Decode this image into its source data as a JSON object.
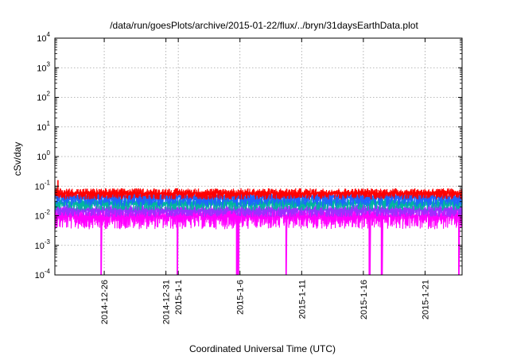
{
  "chart_data": {
    "type": "line",
    "title": "/data/run/goesPlots/archive/2015-01-22/flux/../bryn/31daysEarthData.plot",
    "xlabel": "Coordinated Universal Time (UTC)",
    "ylabel": "cSv/day",
    "yscale": "log",
    "ylim": [
      0.0001,
      10000
    ],
    "xlim": [
      "2014-12-22T00:00",
      "2015-01-24T00:00"
    ],
    "grid": true,
    "legend": "none",
    "x_ticks": [
      {
        "date": "2014-12-26",
        "label": "2014-12-26"
      },
      {
        "date": "2014-12-31",
        "label": "2014-12-31"
      },
      {
        "date": "2015-01-01",
        "label": "2015-1-1"
      },
      {
        "date": "2015-01-06",
        "label": "2015-1-6"
      },
      {
        "date": "2015-01-11",
        "label": "2015-1-11"
      },
      {
        "date": "2015-01-16",
        "label": "2015-1-16"
      },
      {
        "date": "2015-01-21",
        "label": "2015-1-21"
      }
    ],
    "y_ticks": [
      {
        "value": 0.0001,
        "base": "10",
        "exp": "-4"
      },
      {
        "value": 0.001,
        "base": "10",
        "exp": "-3"
      },
      {
        "value": 0.01,
        "base": "10",
        "exp": "-2"
      },
      {
        "value": 0.1,
        "base": "10",
        "exp": "-1"
      },
      {
        "value": 1,
        "base": "10",
        "exp": "0"
      },
      {
        "value": 10,
        "base": "10",
        "exp": "1"
      },
      {
        "value": 100,
        "base": "10",
        "exp": "2"
      },
      {
        "value": 1000,
        "base": "10",
        "exp": "3"
      },
      {
        "value": 10000,
        "base": "10",
        "exp": "4"
      }
    ],
    "series": [
      {
        "color": "#ff0000",
        "level": 0.058,
        "noise_low": 0.035,
        "noise_high": 0.085,
        "notable_points": [
          {
            "x": "2014-12-22T06:00",
            "y": 0.16
          }
        ]
      },
      {
        "color": "#1e64ff",
        "level": 0.045,
        "noise_low": 0.02,
        "noise_high": 0.06
      },
      {
        "color": "#00b4a0",
        "level": 0.027,
        "noise_low": 0.015,
        "noise_high": 0.04
      },
      {
        "color": "#9b30ff",
        "level": 0.016,
        "noise_low": 0.009,
        "noise_high": 0.024
      },
      {
        "color": "#ff00ff",
        "level": 0.01,
        "noise_low": 0.0035,
        "noise_high": 0.02,
        "dropouts": [
          "2014-12-25T18:00",
          "2014-12-31T22:00",
          "2015-01-05T18:00",
          "2015-01-05T21:00",
          "2015-01-09T18:00",
          "2015-01-16T12:00",
          "2015-01-17T12:00",
          "2015-01-23T18:00"
        ]
      }
    ]
  }
}
